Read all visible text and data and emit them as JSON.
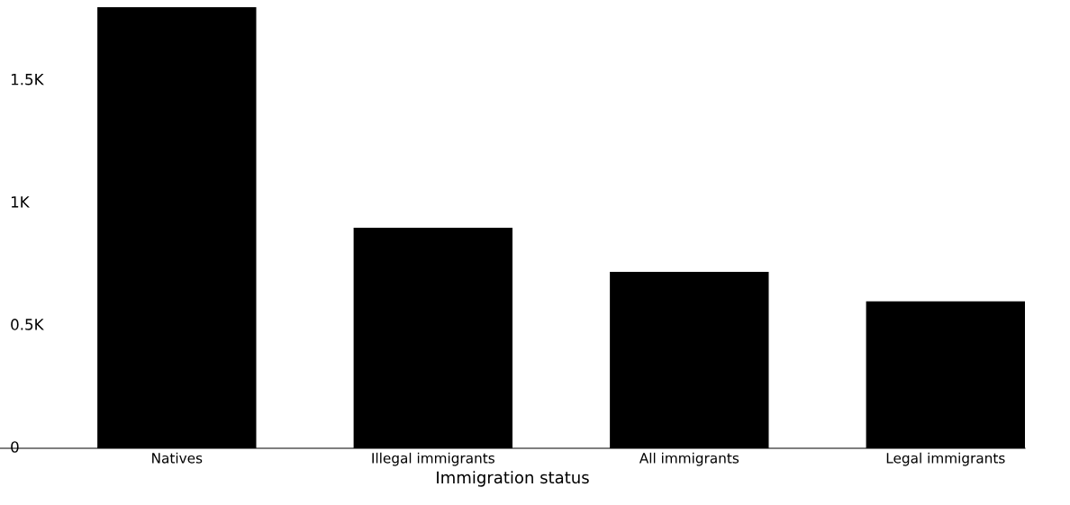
{
  "chart_data": {
    "type": "bar",
    "xlabel": "Immigration status",
    "categories": [
      "Natives",
      "Illegal immigrants",
      "All immigrants",
      "Legal immigrants"
    ],
    "values": [
      1800,
      900,
      720,
      600
    ],
    "color": "#000000",
    "ylim": [
      0,
      1800
    ],
    "yticks": [
      {
        "value": 0,
        "label": "0"
      },
      {
        "value": 500,
        "label": "0.5K"
      },
      {
        "value": 1000,
        "label": "1K"
      },
      {
        "value": 1500,
        "label": "1.5K"
      }
    ],
    "grid": false,
    "legend": false
  }
}
